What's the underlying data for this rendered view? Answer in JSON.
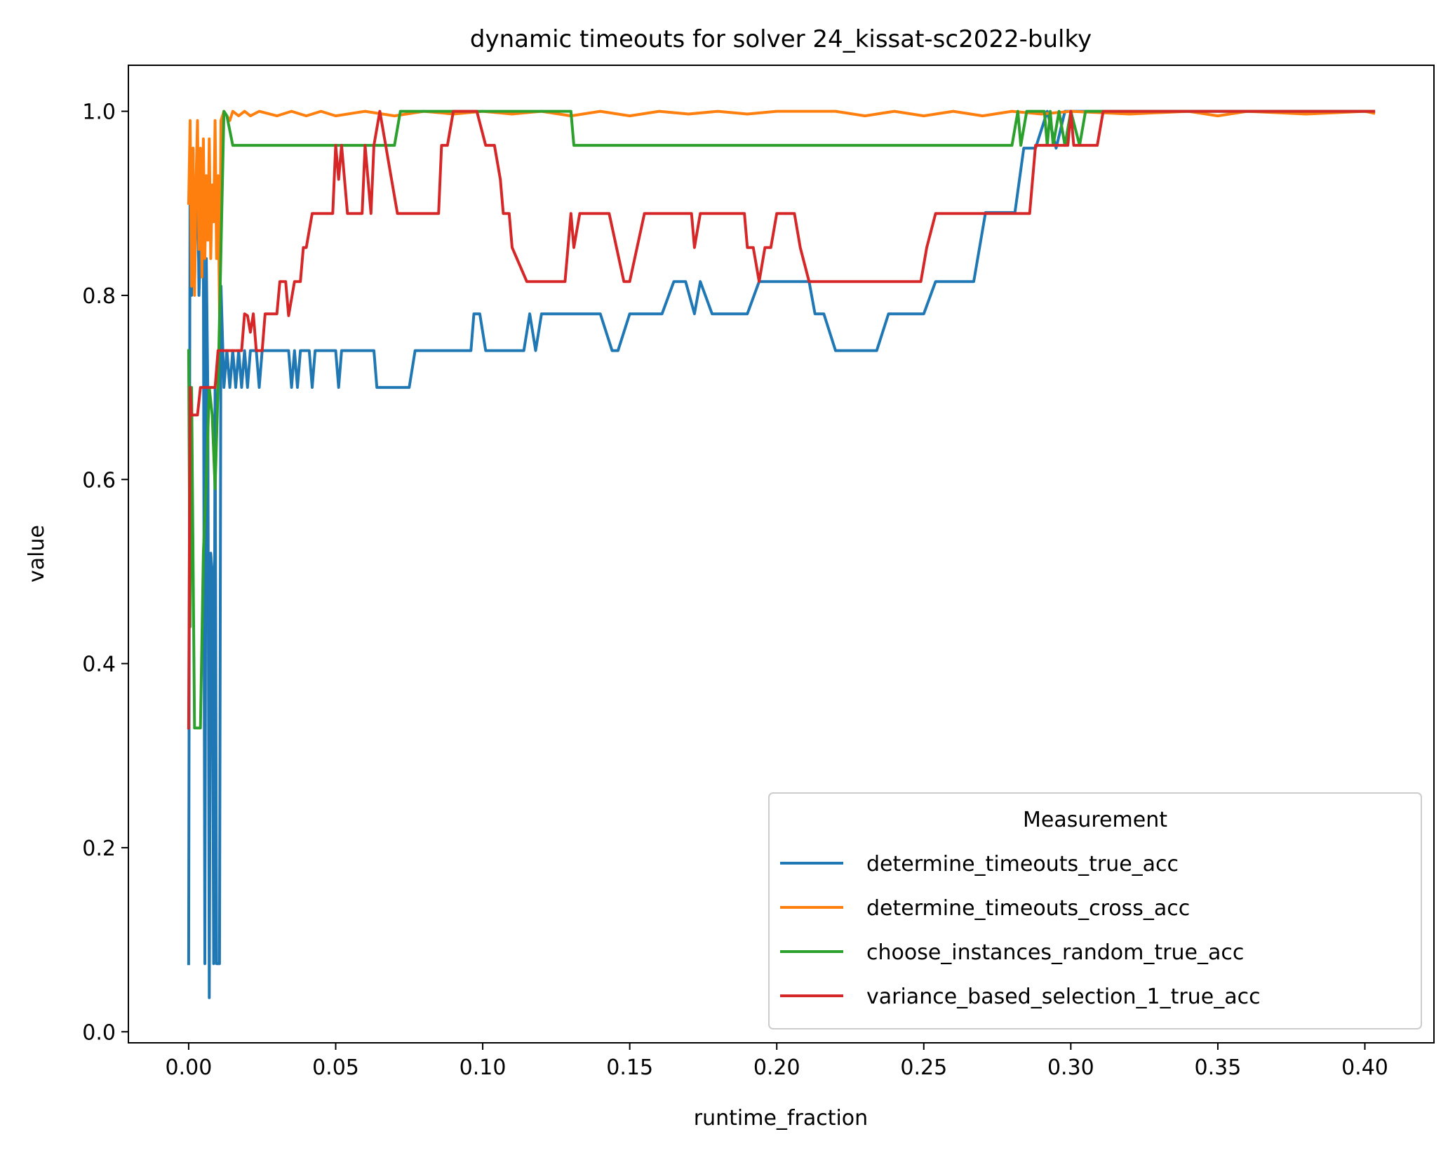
{
  "chart_data": {
    "type": "line",
    "title": "dynamic timeouts for solver 24_kissat-sc2022-bulky",
    "xlabel": "runtime_fraction",
    "ylabel": "value",
    "xlim": [
      -0.0205,
      0.4235
    ],
    "ylim": [
      -0.012,
      1.05
    ],
    "xticks": [
      {
        "value": 0.0,
        "label": "0.00"
      },
      {
        "value": 0.05,
        "label": "0.05"
      },
      {
        "value": 0.1,
        "label": "0.10"
      },
      {
        "value": 0.15,
        "label": "0.15"
      },
      {
        "value": 0.2,
        "label": "0.20"
      },
      {
        "value": 0.25,
        "label": "0.25"
      },
      {
        "value": 0.3,
        "label": "0.30"
      },
      {
        "value": 0.35,
        "label": "0.35"
      },
      {
        "value": 0.4,
        "label": "0.40"
      }
    ],
    "yticks": [
      {
        "value": 0.0,
        "label": "0.0"
      },
      {
        "value": 0.2,
        "label": "0.2"
      },
      {
        "value": 0.4,
        "label": "0.4"
      },
      {
        "value": 0.6,
        "label": "0.6"
      },
      {
        "value": 0.8,
        "label": "0.8"
      },
      {
        "value": 1.0,
        "label": "1.0"
      }
    ],
    "grid": false,
    "legend": {
      "title": "Measurement",
      "placement": "lower-right"
    },
    "series": [
      {
        "name": "determine_timeouts_true_acc",
        "color": "#1f77b4",
        "points": [
          [
            0.0,
            0.074
          ],
          [
            0.0005,
            0.96
          ],
          [
            0.001,
            0.8
          ],
          [
            0.0015,
            0.96
          ],
          [
            0.002,
            0.81
          ],
          [
            0.003,
            0.96
          ],
          [
            0.0035,
            0.8
          ],
          [
            0.004,
            0.85
          ],
          [
            0.005,
            0.84
          ],
          [
            0.0055,
            0.074
          ],
          [
            0.006,
            0.84
          ],
          [
            0.0065,
            0.7
          ],
          [
            0.007,
            0.037
          ],
          [
            0.0075,
            0.52
          ],
          [
            0.008,
            0.5
          ],
          [
            0.0085,
            0.074
          ],
          [
            0.009,
            0.7
          ],
          [
            0.0095,
            0.074
          ],
          [
            0.0105,
            0.074
          ],
          [
            0.011,
            0.81
          ],
          [
            0.012,
            0.7
          ],
          [
            0.013,
            0.74
          ],
          [
            0.014,
            0.7
          ],
          [
            0.015,
            0.74
          ],
          [
            0.016,
            0.7
          ],
          [
            0.017,
            0.74
          ],
          [
            0.018,
            0.7
          ],
          [
            0.019,
            0.74
          ],
          [
            0.02,
            0.7
          ],
          [
            0.021,
            0.74
          ],
          [
            0.022,
            0.74
          ],
          [
            0.023,
            0.74
          ],
          [
            0.024,
            0.7
          ],
          [
            0.025,
            0.74
          ],
          [
            0.034,
            0.74
          ],
          [
            0.035,
            0.7
          ],
          [
            0.036,
            0.74
          ],
          [
            0.037,
            0.7
          ],
          [
            0.038,
            0.74
          ],
          [
            0.041,
            0.74
          ],
          [
            0.042,
            0.7
          ],
          [
            0.043,
            0.74
          ],
          [
            0.05,
            0.74
          ],
          [
            0.051,
            0.7
          ],
          [
            0.052,
            0.74
          ],
          [
            0.063,
            0.74
          ],
          [
            0.064,
            0.7
          ],
          [
            0.075,
            0.7
          ],
          [
            0.077,
            0.74
          ],
          [
            0.096,
            0.74
          ],
          [
            0.097,
            0.78
          ],
          [
            0.099,
            0.78
          ],
          [
            0.101,
            0.74
          ],
          [
            0.114,
            0.74
          ],
          [
            0.116,
            0.78
          ],
          [
            0.118,
            0.74
          ],
          [
            0.12,
            0.78
          ],
          [
            0.14,
            0.78
          ],
          [
            0.144,
            0.74
          ],
          [
            0.146,
            0.74
          ],
          [
            0.15,
            0.78
          ],
          [
            0.161,
            0.78
          ],
          [
            0.165,
            0.815
          ],
          [
            0.169,
            0.815
          ],
          [
            0.172,
            0.78
          ],
          [
            0.174,
            0.815
          ],
          [
            0.178,
            0.78
          ],
          [
            0.19,
            0.78
          ],
          [
            0.194,
            0.815
          ],
          [
            0.211,
            0.815
          ],
          [
            0.213,
            0.78
          ],
          [
            0.216,
            0.78
          ],
          [
            0.22,
            0.74
          ],
          [
            0.234,
            0.74
          ],
          [
            0.238,
            0.78
          ],
          [
            0.25,
            0.78
          ],
          [
            0.254,
            0.815
          ],
          [
            0.267,
            0.815
          ],
          [
            0.271,
            0.89
          ],
          [
            0.281,
            0.89
          ],
          [
            0.284,
            0.96
          ],
          [
            0.288,
            0.96
          ],
          [
            0.292,
            1.0
          ],
          [
            0.295,
            0.96
          ],
          [
            0.298,
            1.0
          ],
          [
            0.403,
            1.0
          ]
        ]
      },
      {
        "name": "determine_timeouts_cross_acc",
        "color": "#ff7f0e",
        "points": [
          [
            0.0,
            0.9
          ],
          [
            0.0005,
            0.99
          ],
          [
            0.001,
            0.81
          ],
          [
            0.0015,
            0.96
          ],
          [
            0.002,
            0.8
          ],
          [
            0.0025,
            0.92
          ],
          [
            0.003,
            0.99
          ],
          [
            0.0035,
            0.85
          ],
          [
            0.004,
            0.96
          ],
          [
            0.0045,
            0.82
          ],
          [
            0.005,
            0.97
          ],
          [
            0.0055,
            0.84
          ],
          [
            0.006,
            0.93
          ],
          [
            0.0065,
            0.86
          ],
          [
            0.007,
            0.97
          ],
          [
            0.0075,
            0.84
          ],
          [
            0.008,
            0.92
          ],
          [
            0.0085,
            0.88
          ],
          [
            0.009,
            0.99
          ],
          [
            0.0095,
            0.84
          ],
          [
            0.01,
            0.93
          ],
          [
            0.0105,
            0.78
          ],
          [
            0.011,
            0.99
          ],
          [
            0.012,
            1.0
          ],
          [
            0.014,
            0.99
          ],
          [
            0.015,
            1.0
          ],
          [
            0.017,
            0.995
          ],
          [
            0.019,
            1.0
          ],
          [
            0.021,
            0.995
          ],
          [
            0.024,
            1.0
          ],
          [
            0.03,
            0.995
          ],
          [
            0.035,
            1.0
          ],
          [
            0.04,
            0.995
          ],
          [
            0.045,
            1.0
          ],
          [
            0.05,
            0.995
          ],
          [
            0.06,
            1.0
          ],
          [
            0.07,
            0.995
          ],
          [
            0.08,
            1.0
          ],
          [
            0.09,
            0.997
          ],
          [
            0.1,
            1.0
          ],
          [
            0.11,
            0.997
          ],
          [
            0.12,
            1.0
          ],
          [
            0.13,
            0.995
          ],
          [
            0.14,
            1.0
          ],
          [
            0.15,
            0.995
          ],
          [
            0.16,
            1.0
          ],
          [
            0.17,
            0.997
          ],
          [
            0.18,
            1.0
          ],
          [
            0.19,
            0.997
          ],
          [
            0.2,
            1.0
          ],
          [
            0.22,
            1.0
          ],
          [
            0.23,
            0.995
          ],
          [
            0.24,
            1.0
          ],
          [
            0.25,
            0.995
          ],
          [
            0.26,
            1.0
          ],
          [
            0.27,
            0.995
          ],
          [
            0.28,
            1.0
          ],
          [
            0.29,
            0.997
          ],
          [
            0.3,
            1.0
          ],
          [
            0.32,
            0.997
          ],
          [
            0.34,
            1.0
          ],
          [
            0.35,
            0.995
          ],
          [
            0.36,
            1.0
          ],
          [
            0.38,
            0.997
          ],
          [
            0.4,
            1.0
          ],
          [
            0.403,
            0.998
          ]
        ]
      },
      {
        "name": "choose_instances_random_true_acc",
        "color": "#2ca02c",
        "points": [
          [
            0.0,
            0.74
          ],
          [
            0.0005,
            0.44
          ],
          [
            0.001,
            0.7
          ],
          [
            0.002,
            0.33
          ],
          [
            0.004,
            0.33
          ],
          [
            0.005,
            0.52
          ],
          [
            0.006,
            0.6
          ],
          [
            0.007,
            0.7
          ],
          [
            0.008,
            0.67
          ],
          [
            0.009,
            0.59
          ],
          [
            0.01,
            0.7
          ],
          [
            0.011,
            0.85
          ],
          [
            0.012,
            1.0
          ],
          [
            0.013,
            0.995
          ],
          [
            0.015,
            0.963
          ],
          [
            0.07,
            0.963
          ],
          [
            0.072,
            1.0
          ],
          [
            0.13,
            1.0
          ],
          [
            0.131,
            0.963
          ],
          [
            0.28,
            0.963
          ],
          [
            0.282,
            1.0
          ],
          [
            0.283,
            0.963
          ],
          [
            0.285,
            1.0
          ],
          [
            0.291,
            1.0
          ],
          [
            0.292,
            0.963
          ],
          [
            0.293,
            1.0
          ],
          [
            0.294,
            0.963
          ],
          [
            0.296,
            1.0
          ],
          [
            0.298,
            0.963
          ],
          [
            0.3,
            1.0
          ],
          [
            0.303,
            0.963
          ],
          [
            0.305,
            1.0
          ],
          [
            0.403,
            1.0
          ]
        ]
      },
      {
        "name": "variance_based_selection_1_true_acc",
        "color": "#d62728",
        "points": [
          [
            0.0,
            0.33
          ],
          [
            0.0005,
            0.7
          ],
          [
            0.001,
            0.67
          ],
          [
            0.003,
            0.67
          ],
          [
            0.004,
            0.7
          ],
          [
            0.009,
            0.7
          ],
          [
            0.01,
            0.74
          ],
          [
            0.018,
            0.74
          ],
          [
            0.019,
            0.78
          ],
          [
            0.02,
            0.778
          ],
          [
            0.021,
            0.76
          ],
          [
            0.022,
            0.78
          ],
          [
            0.023,
            0.74
          ],
          [
            0.025,
            0.74
          ],
          [
            0.026,
            0.78
          ],
          [
            0.03,
            0.78
          ],
          [
            0.031,
            0.815
          ],
          [
            0.033,
            0.815
          ],
          [
            0.034,
            0.778
          ],
          [
            0.036,
            0.815
          ],
          [
            0.038,
            0.815
          ],
          [
            0.039,
            0.852
          ],
          [
            0.04,
            0.852
          ],
          [
            0.042,
            0.889
          ],
          [
            0.049,
            0.889
          ],
          [
            0.05,
            0.963
          ],
          [
            0.051,
            0.926
          ],
          [
            0.052,
            0.963
          ],
          [
            0.054,
            0.889
          ],
          [
            0.059,
            0.889
          ],
          [
            0.06,
            0.963
          ],
          [
            0.062,
            0.889
          ],
          [
            0.063,
            0.963
          ],
          [
            0.065,
            1.0
          ],
          [
            0.067,
            0.963
          ],
          [
            0.069,
            0.926
          ],
          [
            0.071,
            0.889
          ],
          [
            0.085,
            0.889
          ],
          [
            0.086,
            0.963
          ],
          [
            0.088,
            0.963
          ],
          [
            0.09,
            1.0
          ],
          [
            0.098,
            1.0
          ],
          [
            0.101,
            0.963
          ],
          [
            0.104,
            0.963
          ],
          [
            0.106,
            0.926
          ],
          [
            0.107,
            0.889
          ],
          [
            0.109,
            0.889
          ],
          [
            0.11,
            0.852
          ],
          [
            0.115,
            0.815
          ],
          [
            0.128,
            0.815
          ],
          [
            0.13,
            0.889
          ],
          [
            0.131,
            0.852
          ],
          [
            0.133,
            0.889
          ],
          [
            0.143,
            0.889
          ],
          [
            0.148,
            0.815
          ],
          [
            0.15,
            0.815
          ],
          [
            0.155,
            0.889
          ],
          [
            0.171,
            0.889
          ],
          [
            0.172,
            0.852
          ],
          [
            0.174,
            0.889
          ],
          [
            0.189,
            0.889
          ],
          [
            0.19,
            0.852
          ],
          [
            0.192,
            0.852
          ],
          [
            0.194,
            0.815
          ],
          [
            0.196,
            0.852
          ],
          [
            0.198,
            0.852
          ],
          [
            0.2,
            0.889
          ],
          [
            0.206,
            0.889
          ],
          [
            0.208,
            0.852
          ],
          [
            0.211,
            0.815
          ],
          [
            0.249,
            0.815
          ],
          [
            0.251,
            0.852
          ],
          [
            0.254,
            0.889
          ],
          [
            0.278,
            0.889
          ],
          [
            0.286,
            0.889
          ],
          [
            0.288,
            0.963
          ],
          [
            0.299,
            0.963
          ],
          [
            0.3,
            1.0
          ],
          [
            0.301,
            0.963
          ],
          [
            0.309,
            0.963
          ],
          [
            0.311,
            1.0
          ],
          [
            0.403,
            1.0
          ]
        ]
      }
    ]
  }
}
